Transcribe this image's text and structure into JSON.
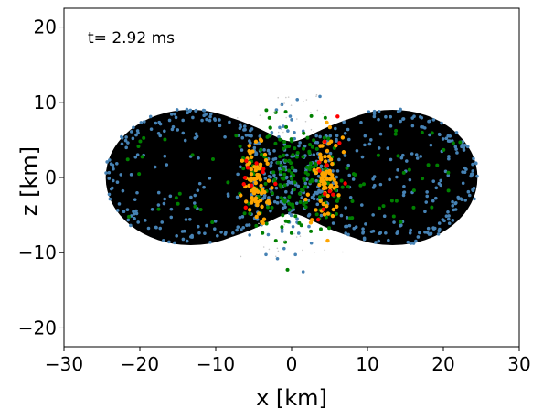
{
  "chart_data": {
    "type": "scatter",
    "annotation": "t= 2.92 ms",
    "xlabel": "x [km]",
    "ylabel": "z [km]",
    "xlim": [
      -30,
      30
    ],
    "ylim": [
      -22.5,
      22.5
    ],
    "xticks": [
      -30,
      -20,
      -10,
      0,
      10,
      20,
      30
    ],
    "xtick_labels": [
      "−30",
      "−20",
      "−10",
      "0",
      "10",
      "20",
      "30"
    ],
    "yticks": [
      -20,
      -10,
      0,
      10,
      20
    ],
    "ytick_labels": [
      "−20",
      "−10",
      "0",
      "10",
      "20"
    ],
    "grid": false,
    "body_shape": {
      "description_color": "#000000",
      "lobes": [
        {
          "cx": -13.3,
          "cz": 0,
          "rx": 11.2,
          "rz": 9.0
        },
        {
          "cx": 13.3,
          "cz": 0,
          "rx": 11.2,
          "rz": 9.0
        }
      ],
      "neck_half_width_z": 4.8
    },
    "series": [
      {
        "color": "#4682b4",
        "approx_count": 620,
        "point_radius_px": 1.8
      },
      {
        "color": "#008000",
        "approx_count": 230,
        "point_radius_px": 2.0
      },
      {
        "color": "#ffa500",
        "approx_count": 150,
        "point_radius_px": 2.2
      },
      {
        "color": "#ff0000",
        "approx_count": 22,
        "point_radius_px": 2.2
      },
      {
        "color": "#c8c8c8",
        "approx_count": 40,
        "point_radius_px": 0.8
      }
    ]
  }
}
